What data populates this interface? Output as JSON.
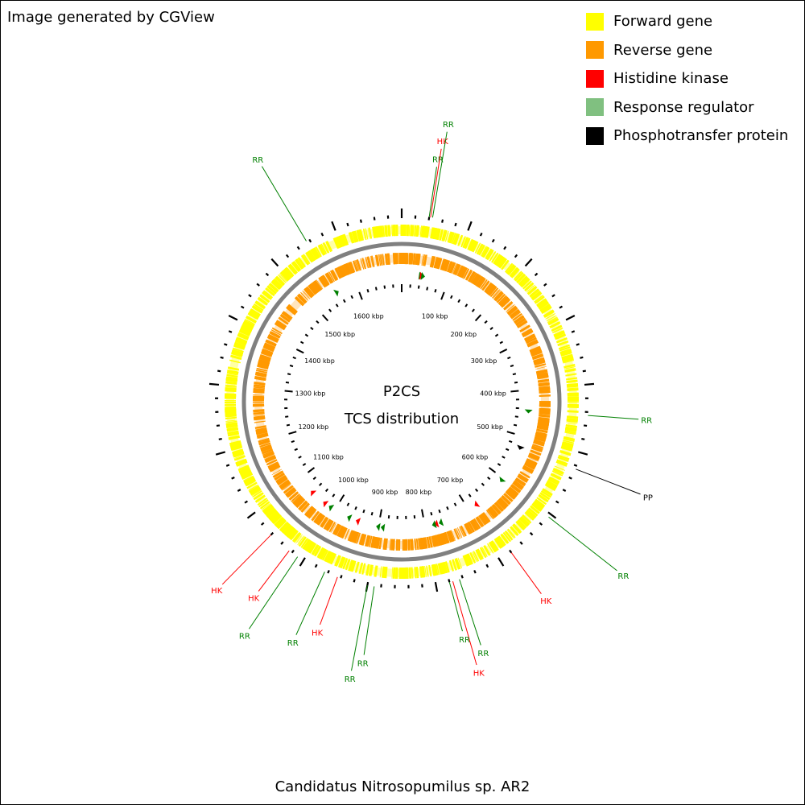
{
  "header": {
    "watermark": "Image generated by CGView"
  },
  "legend": [
    {
      "label": "Forward gene",
      "color": "#FFFF00"
    },
    {
      "label": "Reverse gene",
      "color": "#FF9900"
    },
    {
      "label": "Histidine kinase",
      "color": "#FF0000"
    },
    {
      "label": "Response regulator",
      "color": "#80C080"
    },
    {
      "label": "Phosphotransfer protein",
      "color": "#000000"
    }
  ],
  "map": {
    "title_line1": "P2CS",
    "title_line2": "TCS distribution",
    "genome_length_kbp": 1700,
    "tick_labels": [
      "100 kbp",
      "200 kbp",
      "300 kbp",
      "400 kbp",
      "500 kbp",
      "600 kbp",
      "700 kbp",
      "800 kbp",
      "900 kbp",
      "1000 kbp",
      "1100 kbp",
      "1200 kbp",
      "1300 kbp",
      "1400 kbp",
      "1500 kbp",
      "1600 kbp"
    ],
    "label_colors": {
      "HK": "#FF0000",
      "RR": "#008000",
      "PP": "#000000"
    },
    "features": [
      {
        "label": "RR",
        "type": "RR",
        "position_kbp": 40
      },
      {
        "label": "HK",
        "type": "HK",
        "position_kbp": 42
      },
      {
        "label": "RR",
        "type": "RR",
        "position_kbp": 45
      },
      {
        "label": "RR",
        "type": "RR",
        "position_kbp": 445
      },
      {
        "label": "PP",
        "type": "PP",
        "position_kbp": 525
      },
      {
        "label": "RR",
        "type": "RR",
        "position_kbp": 605
      },
      {
        "label": "HK",
        "type": "HK",
        "position_kbp": 680
      },
      {
        "label": "RR",
        "type": "RR",
        "position_kbp": 765
      },
      {
        "label": "HK",
        "type": "HK",
        "position_kbp": 775
      },
      {
        "label": "RR",
        "type": "RR",
        "position_kbp": 780
      },
      {
        "label": "RR",
        "type": "RR",
        "position_kbp": 890
      },
      {
        "label": "RR",
        "type": "RR",
        "position_kbp": 900
      },
      {
        "label": "HK",
        "type": "HK",
        "position_kbp": 945
      },
      {
        "label": "RR",
        "type": "RR",
        "position_kbp": 965
      },
      {
        "label": "RR",
        "type": "RR",
        "position_kbp": 1010
      },
      {
        "label": "HK",
        "type": "HK",
        "position_kbp": 1025
      },
      {
        "label": "HK",
        "type": "HK",
        "position_kbp": 1060
      },
      {
        "label": "RR",
        "type": "RR",
        "position_kbp": 1555
      }
    ]
  },
  "footer": {
    "genome_name": "Candidatus Nitrosopumilus sp. AR2"
  }
}
